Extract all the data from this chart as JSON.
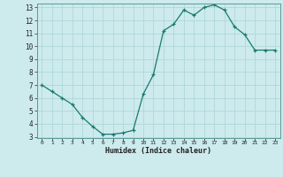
{
  "x": [
    0,
    1,
    2,
    3,
    4,
    5,
    6,
    7,
    8,
    9,
    10,
    11,
    12,
    13,
    14,
    15,
    16,
    17,
    18,
    19,
    20,
    21,
    22,
    23
  ],
  "y": [
    7.0,
    6.5,
    6.0,
    5.5,
    4.5,
    3.8,
    3.2,
    3.2,
    3.3,
    3.5,
    6.3,
    7.8,
    11.2,
    11.7,
    12.8,
    12.4,
    13.0,
    13.2,
    12.8,
    11.5,
    10.9,
    9.7,
    9.7,
    9.7
  ],
  "xlabel": "Humidex (Indice chaleur)",
  "ylim": [
    3,
    13
  ],
  "xlim": [
    -0.5,
    23.5
  ],
  "yticks": [
    3,
    4,
    5,
    6,
    7,
    8,
    9,
    10,
    11,
    12,
    13
  ],
  "xticks": [
    0,
    1,
    2,
    3,
    4,
    5,
    6,
    7,
    8,
    9,
    10,
    11,
    12,
    13,
    14,
    15,
    16,
    17,
    18,
    19,
    20,
    21,
    22,
    23
  ],
  "line_color": "#1a7a6e",
  "marker": "+",
  "bg_color": "#cdeaed",
  "grid_color": "#b0d8dc",
  "spine_color": "#5a9a98",
  "tick_color": "#222222",
  "xlabel_color": "#222222"
}
